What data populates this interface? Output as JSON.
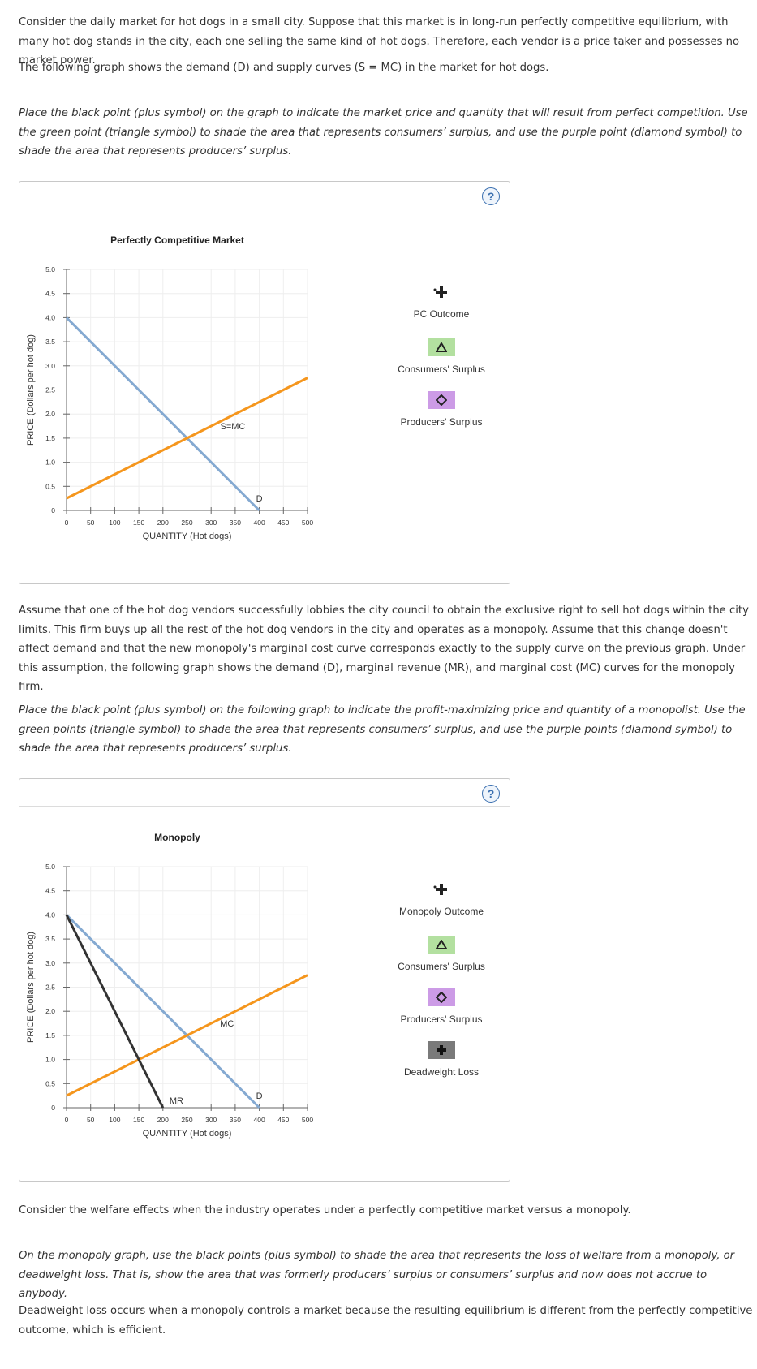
{
  "text": {
    "p1": "Consider the daily market for hot dogs in a small city. Suppose that this market is in long-run perfectly competitive equilibrium, with many hot dog stands in the city, each one selling the same kind of hot dogs. Therefore, each vendor is a price taker and possesses no market power.",
    "p2": "The following graph shows the demand (D) and supply curves (S = MC) in the market for hot dogs.",
    "p3": "Place the black point (plus symbol) on the graph to indicate the market price and quantity that will result from perfect competition. Use the green point (triangle symbol) to shade the area that represents consumers’ surplus, and use the purple point (diamond symbol) to shade the area that represents producers’ surplus.",
    "p4": "Assume that one of the hot dog vendors successfully lobbies the city council to obtain the exclusive right to sell hot dogs within the city limits. This firm buys up all the rest of the hot dog vendors in the city and operates as a monopoly. Assume that this change doesn't affect demand and that the new monopoly's marginal cost curve corresponds exactly to the supply curve on the previous graph. Under this assumption, the following graph shows the demand (D), marginal revenue (MR), and marginal cost (MC) curves for the monopoly firm.",
    "p5": "Place the black point (plus symbol) on the following graph to indicate the profit-maximizing price and quantity of a monopolist. Use the green points (triangle symbol) to shade the area that represents consumers’ surplus, and use the purple points (diamond symbol) to shade the area that represents producers’ surplus.",
    "p6": "Consider the welfare effects when the industry operates under a perfectly competitive market versus a monopoly.",
    "p7": "On the monopoly graph, use the black points (plus symbol) to shade the area that represents the loss of welfare from a monopoly, or deadweight loss. That is, show the area that was formerly producers’ surplus or consumers’ surplus and now does not accrue to anybody.",
    "p8": "Deadweight loss occurs when a monopoly controls a market because the resulting equilibrium is different from the perfectly competitive outcome, which is efficient."
  },
  "help_label": "?",
  "colors": {
    "demand": "#84a9d1",
    "supply": "#f5961d",
    "mr": "#333333",
    "consumer_swatch": "#b3e0a0",
    "producer_swatch": "#cc9be6",
    "dwl_swatch": "#7a7a7a",
    "grid": "#eeeeee",
    "axis": "#666666"
  },
  "legend1": {
    "tool_label": "PC Outcome",
    "consumer_label": "Consumers' Surplus",
    "producer_label": "Producers' Surplus"
  },
  "legend2": {
    "tool_label": "Monopoly Outcome",
    "consumer_label": "Consumers' Surplus",
    "producer_label": "Producers' Surplus",
    "dwl_label": "Deadweight Loss"
  },
  "chart_data": [
    {
      "type": "line",
      "title": "Perfectly Competitive Market",
      "xlabel": "QUANTITY (Hot dogs)",
      "ylabel": "PRICE (Dollars per hot dog)",
      "xlim": [
        0,
        500
      ],
      "ylim": [
        0,
        5.0
      ],
      "xticks": [
        "0",
        "50",
        "100",
        "150",
        "200",
        "250",
        "300",
        "350",
        "400",
        "450",
        "500"
      ],
      "yticks": [
        "0",
        "0.5",
        "1.0",
        "1.5",
        "2.0",
        "2.5",
        "3.0",
        "3.5",
        "4.0",
        "4.5",
        "5.0"
      ],
      "grid": true,
      "series": [
        {
          "name": "D",
          "label": "D",
          "points": [
            [
              0,
              4.0
            ],
            [
              400,
              0
            ]
          ],
          "label_at": [
            400,
            0.25
          ]
        },
        {
          "name": "S=MC",
          "label": "S=MC",
          "points": [
            [
              0,
              0.25
            ],
            [
              500,
              2.75
            ]
          ],
          "label_at": [
            345,
            1.75
          ]
        }
      ]
    },
    {
      "type": "line",
      "title": "Monopoly",
      "xlabel": "QUANTITY (Hot dogs)",
      "ylabel": "PRICE (Dollars per hot dog)",
      "xlim": [
        0,
        500
      ],
      "ylim": [
        0,
        5.0
      ],
      "xticks": [
        "0",
        "50",
        "100",
        "150",
        "200",
        "250",
        "300",
        "350",
        "400",
        "450",
        "500"
      ],
      "yticks": [
        "0",
        "0.5",
        "1.0",
        "1.5",
        "2.0",
        "2.5",
        "3.0",
        "3.5",
        "4.0",
        "4.5",
        "5.0"
      ],
      "grid": true,
      "series": [
        {
          "name": "D",
          "label": "D",
          "points": [
            [
              0,
              4.0
            ],
            [
              400,
              0
            ]
          ],
          "label_at": [
            400,
            0.25
          ]
        },
        {
          "name": "MC",
          "label": "MC",
          "points": [
            [
              0,
              0.25
            ],
            [
              500,
              2.75
            ]
          ],
          "label_at": [
            333,
            1.75
          ]
        },
        {
          "name": "MR",
          "label": "MR",
          "points": [
            [
              0,
              4.0
            ],
            [
              200,
              0
            ]
          ],
          "label_at": [
            228,
            0.15
          ]
        }
      ]
    }
  ]
}
